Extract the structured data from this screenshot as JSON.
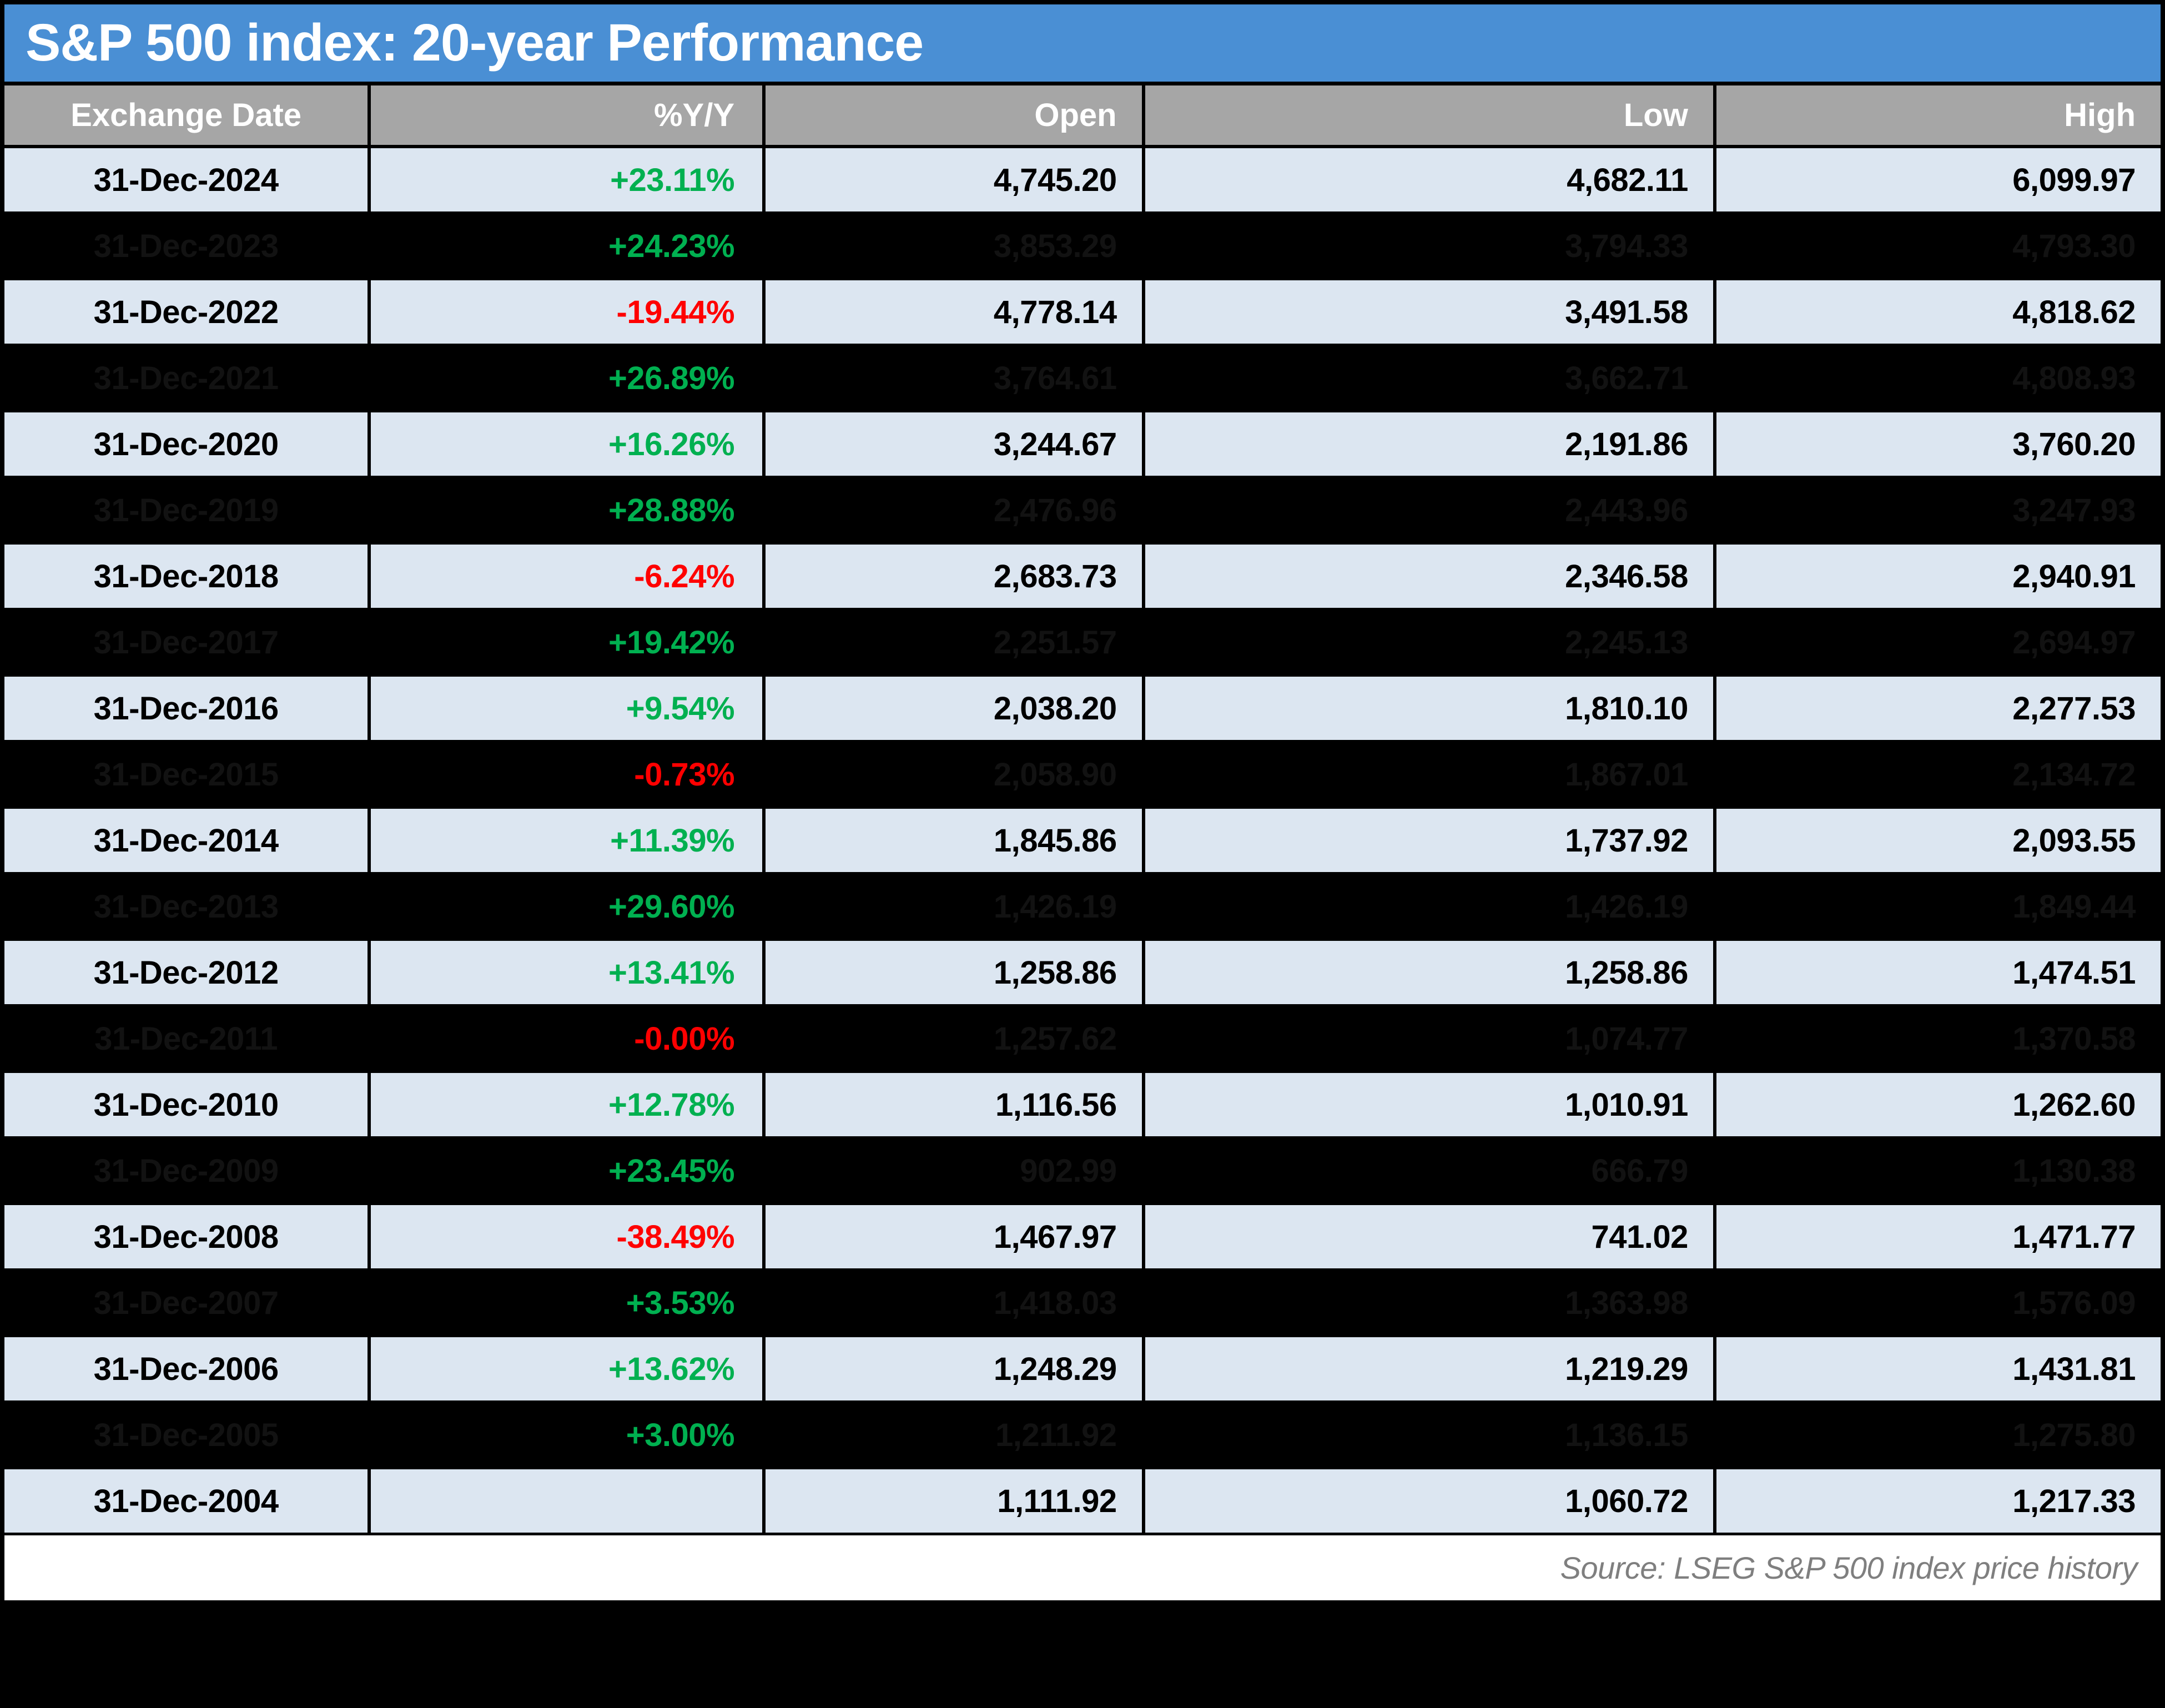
{
  "chart_data": {
    "type": "table",
    "title": "S&P 500 index: 20-year Performance",
    "source": "Source: LSEG S&P 500 index price history",
    "columns": [
      {
        "key": "date",
        "label": "Exchange Date",
        "align": "center"
      },
      {
        "key": "yoy",
        "label": "%Y/Y",
        "align": "right"
      },
      {
        "key": "open",
        "label": "Open",
        "align": "right"
      },
      {
        "key": "low",
        "label": "Low",
        "align": "right"
      },
      {
        "key": "high",
        "label": "High",
        "align": "right"
      }
    ],
    "rows": [
      {
        "date": "31-Dec-2024",
        "yoy": "+23.11%",
        "open": "4,745.20",
        "low": "4,682.11",
        "high": "6,099.97",
        "hidden": false
      },
      {
        "date": "31-Dec-2023",
        "yoy": "+24.23%",
        "open": "3,853.29",
        "low": "3,794.33",
        "high": "4,793.30",
        "hidden": true
      },
      {
        "date": "31-Dec-2022",
        "yoy": "-19.44%",
        "open": "4,778.14",
        "low": "3,491.58",
        "high": "4,818.62",
        "hidden": false
      },
      {
        "date": "31-Dec-2021",
        "yoy": "+26.89%",
        "open": "3,764.61",
        "low": "3,662.71",
        "high": "4,808.93",
        "hidden": true
      },
      {
        "date": "31-Dec-2020",
        "yoy": "+16.26%",
        "open": "3,244.67",
        "low": "2,191.86",
        "high": "3,760.20",
        "hidden": false
      },
      {
        "date": "31-Dec-2019",
        "yoy": "+28.88%",
        "open": "2,476.96",
        "low": "2,443.96",
        "high": "3,247.93",
        "hidden": true
      },
      {
        "date": "31-Dec-2018",
        "yoy": "-6.24%",
        "open": "2,683.73",
        "low": "2,346.58",
        "high": "2,940.91",
        "hidden": false
      },
      {
        "date": "31-Dec-2017",
        "yoy": "+19.42%",
        "open": "2,251.57",
        "low": "2,245.13",
        "high": "2,694.97",
        "hidden": true
      },
      {
        "date": "31-Dec-2016",
        "yoy": "+9.54%",
        "open": "2,038.20",
        "low": "1,810.10",
        "high": "2,277.53",
        "hidden": false
      },
      {
        "date": "31-Dec-2015",
        "yoy": "-0.73%",
        "open": "2,058.90",
        "low": "1,867.01",
        "high": "2,134.72",
        "hidden": true
      },
      {
        "date": "31-Dec-2014",
        "yoy": "+11.39%",
        "open": "1,845.86",
        "low": "1,737.92",
        "high": "2,093.55",
        "hidden": false
      },
      {
        "date": "31-Dec-2013",
        "yoy": "+29.60%",
        "open": "1,426.19",
        "low": "1,426.19",
        "high": "1,849.44",
        "hidden": true
      },
      {
        "date": "31-Dec-2012",
        "yoy": "+13.41%",
        "open": "1,258.86",
        "low": "1,258.86",
        "high": "1,474.51",
        "hidden": false
      },
      {
        "date": "31-Dec-2011",
        "yoy": "-0.00%",
        "open": "1,257.62",
        "low": "1,074.77",
        "high": "1,370.58",
        "hidden": true
      },
      {
        "date": "31-Dec-2010",
        "yoy": "+12.78%",
        "open": "1,116.56",
        "low": "1,010.91",
        "high": "1,262.60",
        "hidden": false
      },
      {
        "date": "31-Dec-2009",
        "yoy": "+23.45%",
        "open": "902.99",
        "low": "666.79",
        "high": "1,130.38",
        "hidden": true
      },
      {
        "date": "31-Dec-2008",
        "yoy": "-38.49%",
        "open": "1,467.97",
        "low": "741.02",
        "high": "1,471.77",
        "hidden": false
      },
      {
        "date": "31-Dec-2007",
        "yoy": "+3.53%",
        "open": "1,418.03",
        "low": "1,363.98",
        "high": "1,576.09",
        "hidden": true
      },
      {
        "date": "31-Dec-2006",
        "yoy": "+13.62%",
        "open": "1,248.29",
        "low": "1,219.29",
        "high": "1,431.81",
        "hidden": false
      },
      {
        "date": "31-Dec-2005",
        "yoy": "+3.00%",
        "open": "1,211.92",
        "low": "1,136.15",
        "high": "1,275.80",
        "hidden": true
      },
      {
        "date": "31-Dec-2004",
        "yoy": "",
        "open": "1,111.92",
        "low": "1,060.72",
        "high": "1,217.33",
        "hidden": false
      }
    ]
  },
  "colors": {
    "title_bg": "#4a8fd4",
    "title_text": "#ffffff",
    "header_bg": "#a6a6a6",
    "header_text": "#ffffff",
    "row_bg": "#dce6f1",
    "hidden_row_bg": "#000000",
    "hidden_text": "#121212",
    "positive": "#00b050",
    "negative": "#ff0000",
    "source_text": "#7f7f7f",
    "border": "#000000"
  }
}
